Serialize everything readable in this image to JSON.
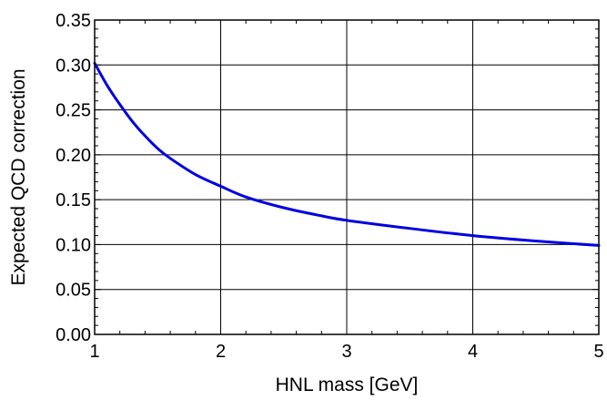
{
  "chart_data": {
    "type": "line",
    "title": "",
    "xlabel": "HNL mass [GeV]",
    "ylabel": "Expected QCD correction",
    "xlim": [
      1,
      5
    ],
    "ylim": [
      0,
      0.35
    ],
    "grid": true,
    "x_ticks": [
      1,
      2,
      3,
      4,
      5
    ],
    "x_tick_labels": [
      "1",
      "2",
      "3",
      "4",
      "5"
    ],
    "y_ticks": [
      0,
      0.05,
      0.1,
      0.15,
      0.2,
      0.25,
      0.3,
      0.35
    ],
    "y_tick_labels": [
      "0.00",
      "0.05",
      "0.10",
      "0.15",
      "0.20",
      "0.25",
      "0.30",
      "0.35"
    ],
    "series": [
      {
        "color": "#0000e0",
        "x": [
          1.0,
          1.1,
          1.2,
          1.3,
          1.4,
          1.5,
          1.6,
          1.8,
          2.0,
          2.2,
          2.5,
          2.8,
          3.0,
          3.5,
          4.0,
          4.5,
          5.0
        ],
        "y": [
          0.302,
          0.277,
          0.256,
          0.237,
          0.221,
          0.207,
          0.196,
          0.178,
          0.165,
          0.153,
          0.141,
          0.132,
          0.127,
          0.118,
          0.11,
          0.104,
          0.099
        ]
      }
    ]
  }
}
